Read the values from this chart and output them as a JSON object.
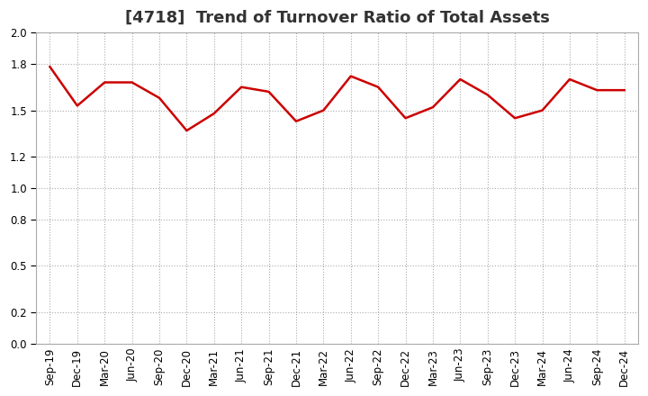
{
  "title": "[4718]  Trend of Turnover Ratio of Total Assets",
  "x_labels": [
    "Sep-19",
    "Dec-19",
    "Mar-20",
    "Jun-20",
    "Sep-20",
    "Dec-20",
    "Mar-21",
    "Jun-21",
    "Sep-21",
    "Dec-21",
    "Mar-22",
    "Jun-22",
    "Sep-22",
    "Dec-22",
    "Mar-23",
    "Jun-23",
    "Sep-23",
    "Dec-23",
    "Mar-24",
    "Jun-24",
    "Sep-24",
    "Dec-24"
  ],
  "y_values": [
    1.78,
    1.53,
    1.68,
    1.68,
    1.58,
    1.37,
    1.48,
    1.65,
    1.62,
    1.43,
    1.5,
    1.72,
    1.65,
    1.45,
    1.52,
    1.7,
    1.6,
    1.45,
    1.5,
    1.7,
    1.63,
    1.63
  ],
  "line_color": "#cc0000",
  "line_width": 1.8,
  "ylim": [
    0.0,
    2.0
  ],
  "yticks": [
    0.0,
    0.2,
    0.5,
    0.8,
    1.0,
    1.2,
    1.5,
    1.8,
    2.0
  ],
  "background_color": "#ffffff",
  "grid_color": "#aaaaaa",
  "title_fontsize": 13,
  "tick_fontsize": 8.5,
  "title_color": "#333333"
}
